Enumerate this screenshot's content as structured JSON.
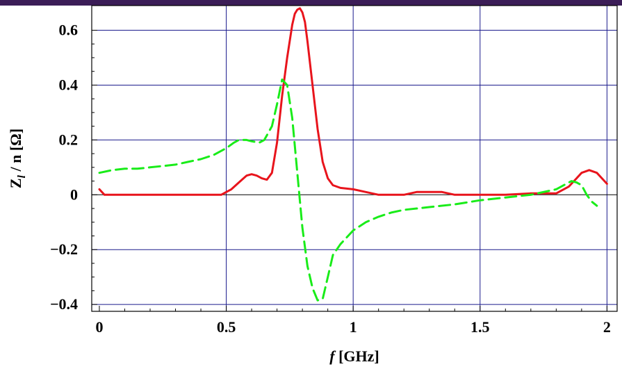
{
  "chart_data": {
    "type": "line",
    "title": "",
    "xlabel_main": "f",
    "xlabel_unit": " [GHz]",
    "ylabel_main": "Z",
    "ylabel_sub": "l",
    "ylabel_rest": " / n [Ω]",
    "xlim": [
      -0.03,
      2.04
    ],
    "ylim": [
      -0.425,
      0.69
    ],
    "xticks": [
      {
        "value": 0,
        "label": "0"
      },
      {
        "value": 0.5,
        "label": "0.5"
      },
      {
        "value": 1,
        "label": "1"
      },
      {
        "value": 1.5,
        "label": "1.5"
      },
      {
        "value": 2,
        "label": "2"
      }
    ],
    "yticks": [
      {
        "value": -0.4,
        "label": "−0.4"
      },
      {
        "value": -0.2,
        "label": "−0.2"
      },
      {
        "value": 0,
        "label": "0"
      },
      {
        "value": 0.2,
        "label": "0.2"
      },
      {
        "value": 0.4,
        "label": "0.4"
      },
      {
        "value": 0.6,
        "label": "0.6"
      }
    ],
    "grid": true,
    "colors": {
      "frame_top_band": "#3b1d57",
      "grid": "#1a1a8c",
      "frame": "#000000"
    },
    "series": [
      {
        "color": "#e8141c",
        "style": "solid",
        "x": [
          0.0,
          0.02,
          0.05,
          0.1,
          0.2,
          0.3,
          0.4,
          0.48,
          0.5,
          0.52,
          0.55,
          0.58,
          0.6,
          0.62,
          0.64,
          0.66,
          0.68,
          0.7,
          0.72,
          0.74,
          0.76,
          0.77,
          0.78,
          0.79,
          0.8,
          0.81,
          0.82,
          0.84,
          0.86,
          0.88,
          0.9,
          0.92,
          0.95,
          1.0,
          1.05,
          1.1,
          1.2,
          1.25,
          1.3,
          1.35,
          1.4,
          1.5,
          1.6,
          1.7,
          1.8,
          1.85,
          1.88,
          1.9,
          1.93,
          1.96,
          2.0
        ],
        "y": [
          0.02,
          0.0,
          0.0,
          0.0,
          0.0,
          0.0,
          0.0,
          0.0,
          0.01,
          0.02,
          0.045,
          0.07,
          0.075,
          0.07,
          0.06,
          0.055,
          0.08,
          0.19,
          0.36,
          0.5,
          0.62,
          0.66,
          0.675,
          0.68,
          0.665,
          0.63,
          0.56,
          0.4,
          0.24,
          0.12,
          0.06,
          0.035,
          0.025,
          0.02,
          0.01,
          0.0,
          0.0,
          0.01,
          0.01,
          0.01,
          0.0,
          0.0,
          0.0,
          0.005,
          0.005,
          0.03,
          0.06,
          0.08,
          0.09,
          0.08,
          0.04
        ]
      },
      {
        "color": "#19ec19",
        "style": "dashed",
        "x": [
          0.0,
          0.05,
          0.1,
          0.15,
          0.2,
          0.25,
          0.3,
          0.35,
          0.4,
          0.45,
          0.5,
          0.53,
          0.55,
          0.58,
          0.6,
          0.63,
          0.65,
          0.68,
          0.7,
          0.72,
          0.74,
          0.76,
          0.78,
          0.8,
          0.82,
          0.84,
          0.86,
          0.88,
          0.9,
          0.92,
          0.95,
          1.0,
          1.05,
          1.1,
          1.15,
          1.2,
          1.25,
          1.3,
          1.4,
          1.5,
          1.6,
          1.7,
          1.8,
          1.84,
          1.86,
          1.88,
          1.9,
          1.92,
          1.94,
          1.96
        ],
        "y": [
          0.08,
          0.09,
          0.095,
          0.095,
          0.1,
          0.105,
          0.11,
          0.12,
          0.13,
          0.145,
          0.17,
          0.19,
          0.2,
          0.2,
          0.195,
          0.19,
          0.2,
          0.25,
          0.33,
          0.42,
          0.4,
          0.28,
          0.08,
          -0.12,
          -0.26,
          -0.34,
          -0.385,
          -0.38,
          -0.3,
          -0.22,
          -0.18,
          -0.13,
          -0.1,
          -0.08,
          -0.065,
          -0.055,
          -0.05,
          -0.045,
          -0.035,
          -0.02,
          -0.01,
          0.0,
          0.02,
          0.04,
          0.05,
          0.045,
          0.035,
          0.0,
          -0.025,
          -0.04
        ]
      }
    ]
  }
}
